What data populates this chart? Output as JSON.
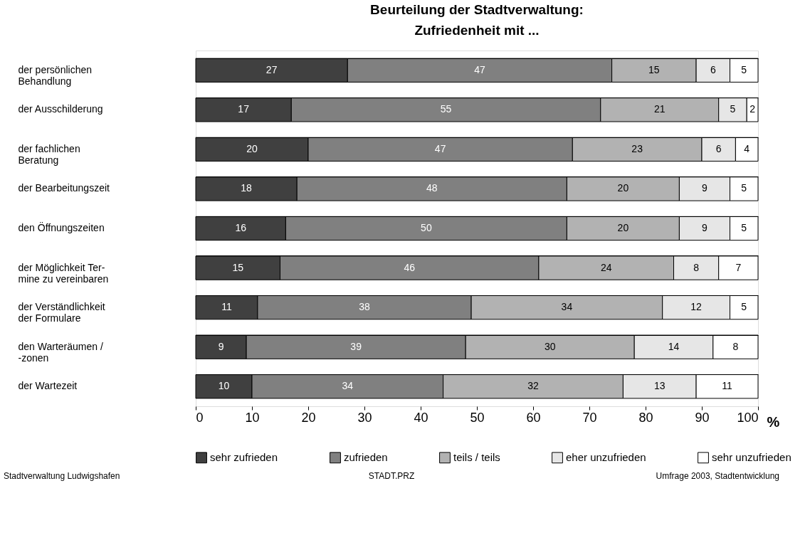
{
  "chart_data": {
    "type": "bar",
    "orientation": "horizontal",
    "stacked": true,
    "title": "Beurteilung der Stadtverwaltung:",
    "subtitle": "Zufriedenheit mit ...",
    "xlabel": "%",
    "categories": [
      "der persönlichen\nBehandlung",
      "der Ausschilderung",
      "der fachlichen\n\nBeratung",
      "der Bearbeitungszeit",
      "den Öffnungszeiten",
      "der Möglichkeit Ter-\n\nmine zu vereinbaren",
      "der Verständlichkeit\nder Formulare",
      "den Warteräumen /\n-zonen",
      "der Wartezeit"
    ],
    "series": [
      {
        "name": "sehr zufrieden",
        "color": "#404040",
        "values": [
          27,
          17,
          20,
          18,
          16,
          15,
          11,
          9,
          10
        ]
      },
      {
        "name": "zufrieden",
        "color": "#808080",
        "values": [
          47,
          55,
          47,
          48,
          50,
          46,
          38,
          39,
          34
        ]
      },
      {
        "name": "teils / teils",
        "color": "#b2b2b2",
        "values": [
          15,
          21,
          23,
          20,
          20,
          24,
          34,
          30,
          32
        ]
      },
      {
        "name": "eher unzufrieden",
        "color": "#e6e6e6",
        "values": [
          6,
          5,
          6,
          9,
          9,
          8,
          12,
          14,
          13
        ]
      },
      {
        "name": "sehr unzufrieden",
        "color": "#ffffff",
        "values": [
          5,
          2,
          4,
          5,
          5,
          7,
          5,
          8,
          11
        ]
      }
    ],
    "xlim": [
      0,
      100
    ],
    "xticks": [
      0,
      10,
      20,
      30,
      40,
      50,
      60,
      70,
      80,
      90,
      100
    ],
    "grid": "y",
    "legend": "bottom",
    "data_labels": true,
    "annotations": [
      "Stadtverwaltung Ludwigshafen",
      "STADT.PRZ",
      "Umfrage 2003, Stadtentwicklung"
    ]
  }
}
